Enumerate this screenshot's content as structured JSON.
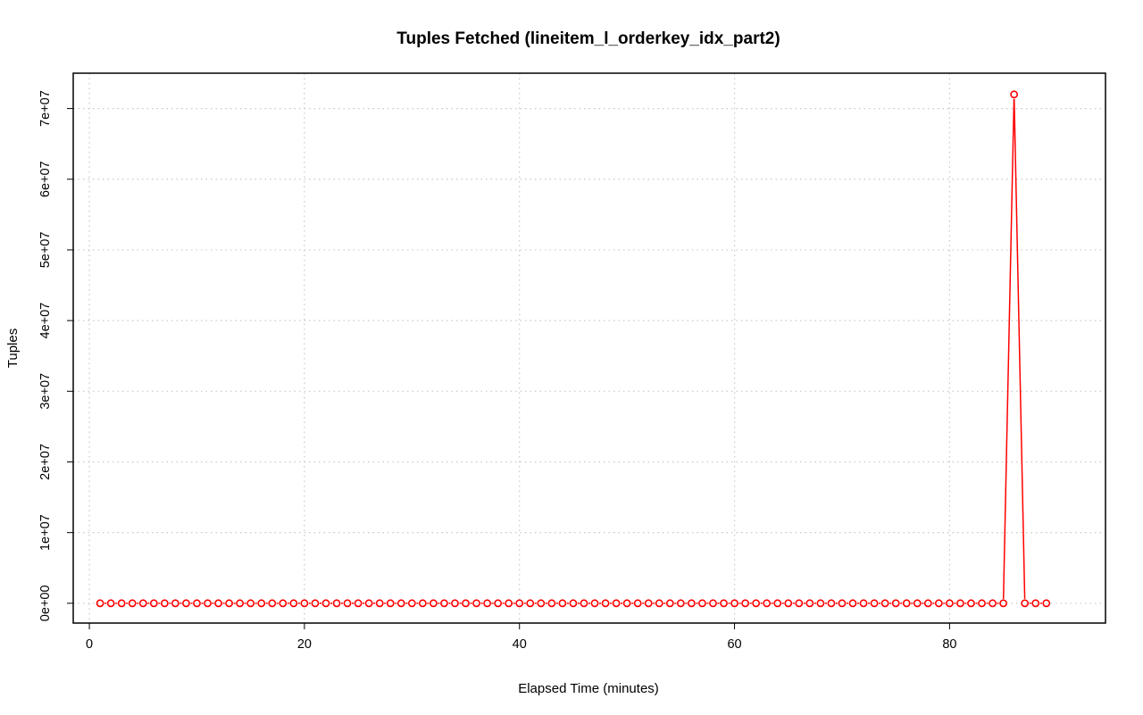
{
  "chart_data": {
    "type": "line",
    "title": "Tuples Fetched (lineitem_l_orderkey_idx_part2)",
    "xlabel": "Elapsed Time (minutes)",
    "ylabel": "Tuples",
    "xlim": [
      -1.5,
      94.5
    ],
    "ylim": [
      -2800000,
      75000000
    ],
    "x_ticks": [
      0,
      20,
      40,
      60,
      80
    ],
    "x_tick_labels": [
      "0",
      "20",
      "40",
      "60",
      "80"
    ],
    "y_ticks": [
      0,
      10000000,
      20000000,
      30000000,
      40000000,
      50000000,
      60000000,
      70000000
    ],
    "y_tick_labels": [
      "0e+00",
      "1e+07",
      "2e+07",
      "3e+07",
      "4e+07",
      "5e+07",
      "6e+07",
      "7e+07"
    ],
    "grid": true,
    "legend": "none",
    "series": [
      {
        "color": "#ff0000",
        "style": "points-and-lines",
        "x": [
          1,
          2,
          3,
          4,
          5,
          6,
          7,
          8,
          9,
          10,
          11,
          12,
          13,
          14,
          15,
          16,
          17,
          18,
          19,
          20,
          21,
          22,
          23,
          24,
          25,
          26,
          27,
          28,
          29,
          30,
          31,
          32,
          33,
          34,
          35,
          36,
          37,
          38,
          39,
          40,
          41,
          42,
          43,
          44,
          45,
          46,
          47,
          48,
          49,
          50,
          51,
          52,
          53,
          54,
          55,
          56,
          57,
          58,
          59,
          60,
          61,
          62,
          63,
          64,
          65,
          66,
          67,
          68,
          69,
          70,
          71,
          72,
          73,
          74,
          75,
          76,
          77,
          78,
          79,
          80,
          81,
          82,
          83,
          84,
          85,
          86,
          87,
          88,
          89
        ],
        "y": [
          0,
          0,
          0,
          0,
          0,
          0,
          0,
          0,
          0,
          0,
          0,
          0,
          0,
          0,
          0,
          0,
          0,
          0,
          0,
          0,
          0,
          0,
          0,
          0,
          0,
          0,
          0,
          0,
          0,
          0,
          0,
          0,
          0,
          0,
          0,
          0,
          0,
          0,
          0,
          0,
          0,
          0,
          0,
          0,
          0,
          0,
          0,
          0,
          0,
          0,
          0,
          0,
          0,
          0,
          0,
          0,
          0,
          0,
          0,
          0,
          0,
          0,
          0,
          0,
          0,
          0,
          0,
          0,
          0,
          0,
          0,
          0,
          0,
          0,
          0,
          0,
          0,
          0,
          0,
          0,
          0,
          0,
          0,
          0,
          0,
          72000000,
          0,
          0,
          0
        ]
      }
    ]
  }
}
